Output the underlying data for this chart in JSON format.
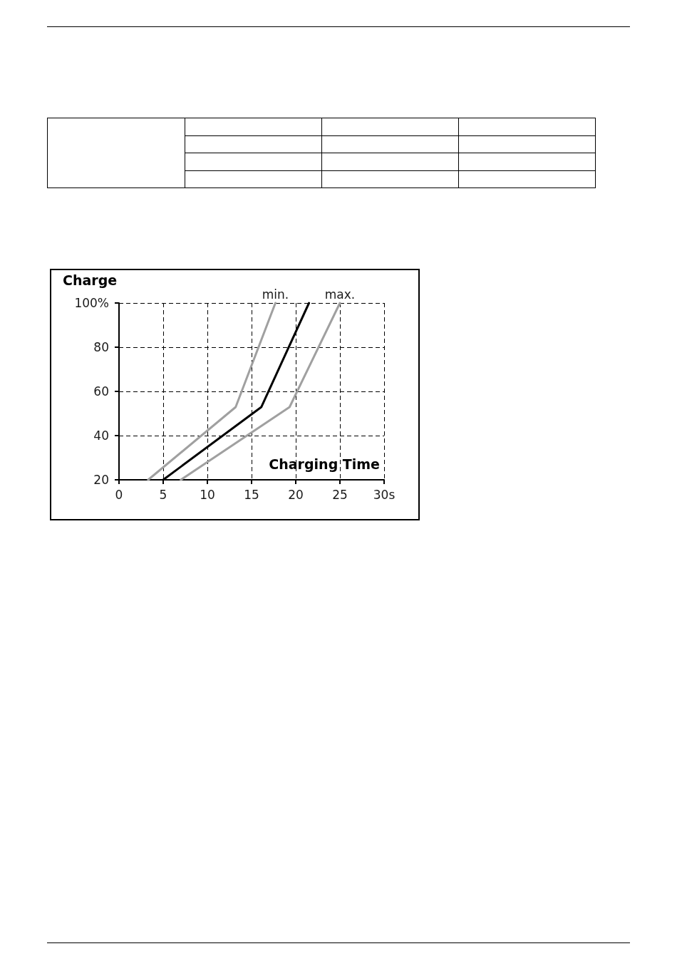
{
  "chart_data": {
    "type": "line",
    "ylabel": "Charge",
    "xlabel": "Charging Time",
    "series": [
      {
        "name": "min.",
        "color": "#a0a0a0",
        "x": [
          3.3,
          13.2,
          17.7
        ],
        "values": [
          20,
          52.9,
          100
        ]
      },
      {
        "color": "#000000",
        "x": [
          5,
          16.1,
          21.5
        ],
        "values": [
          20,
          52.9,
          100
        ]
      },
      {
        "name": "max.",
        "color": "#a0a0a0",
        "x": [
          7,
          19.3,
          25
        ],
        "values": [
          20,
          52.9,
          100
        ]
      }
    ],
    "xlim": [
      0,
      30
    ],
    "xticks": [
      0,
      5,
      10,
      15,
      20,
      25,
      {
        "value": 30,
        "label": "30s"
      }
    ],
    "ylim": [
      20,
      100
    ],
    "yticks": [
      20,
      40,
      60,
      80,
      {
        "value": 100,
        "label": "100%"
      }
    ],
    "grid": true,
    "legend": false,
    "marker": "none",
    "line_style": "solid"
  }
}
